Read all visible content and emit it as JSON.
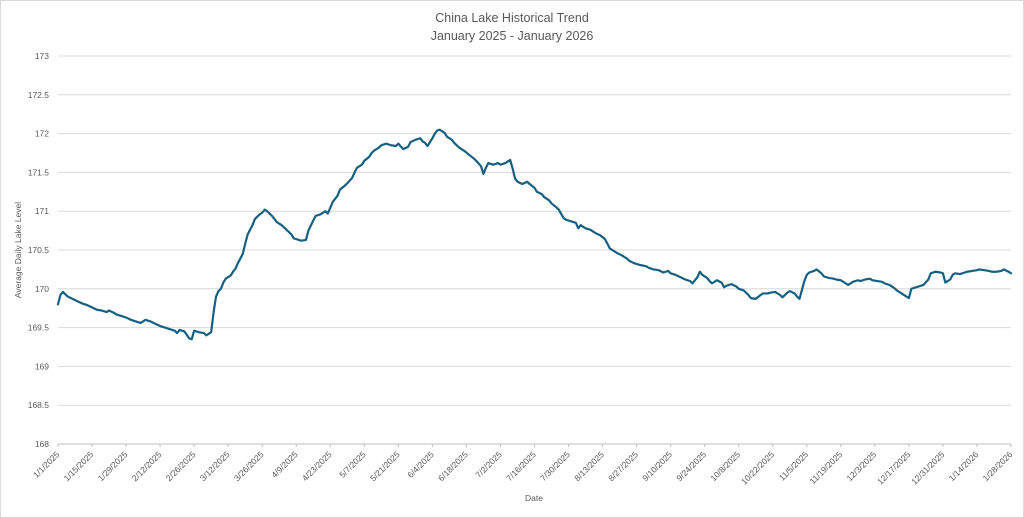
{
  "chart_data": {
    "type": "line",
    "title": "China Lake Historical Trend",
    "subtitle": "January 2025 - January 2026",
    "xlabel": "Date",
    "ylabel": "Average Daily Lake Level",
    "ylim": [
      168,
      173
    ],
    "y_ticks": [
      168,
      168.5,
      169,
      169.5,
      170,
      170.5,
      171,
      171.5,
      172,
      172.5,
      173
    ],
    "x_ticks": [
      "1/1/2025",
      "1/15/2025",
      "1/29/2025",
      "2/12/2025",
      "2/26/2025",
      "3/12/2025",
      "3/26/2025",
      "4/9/2025",
      "4/23/2025",
      "5/7/2025",
      "5/21/2025",
      "6/4/2025",
      "6/18/2025",
      "7/2/2025",
      "7/16/2025",
      "7/30/2025",
      "8/13/2025",
      "8/27/2025",
      "9/10/2025",
      "9/24/2025",
      "10/8/2025",
      "10/22/2025",
      "11/5/2025",
      "11/19/2025",
      "12/3/2025",
      "12/17/2025",
      "12/31/2025",
      "1/14/2026",
      "1/28/2026"
    ],
    "grid": true,
    "legend": false,
    "colors": {
      "line": "#156082",
      "gridline": "#d9d9d9",
      "axis_line": "#bfbfbf",
      "text": "#595959"
    },
    "series": [
      {
        "name": "Average Daily Lake Level",
        "points": [
          [
            "1/1/2025",
            169.8
          ],
          [
            "1/2/2025",
            169.92
          ],
          [
            "1/3/2025",
            169.96
          ],
          [
            "1/4/2025",
            169.93
          ],
          [
            "1/5/2025",
            169.9
          ],
          [
            "1/7/2025",
            169.87
          ],
          [
            "1/9/2025",
            169.84
          ],
          [
            "1/11/2025",
            169.81
          ],
          [
            "1/13/2025",
            169.79
          ],
          [
            "1/15/2025",
            169.76
          ],
          [
            "1/17/2025",
            169.73
          ],
          [
            "1/19/2025",
            169.72
          ],
          [
            "1/21/2025",
            169.7
          ],
          [
            "1/22/2025",
            169.72
          ],
          [
            "1/24/2025",
            169.69
          ],
          [
            "1/25/2025",
            169.67
          ],
          [
            "1/27/2025",
            169.65
          ],
          [
            "1/29/2025",
            169.63
          ],
          [
            "1/31/2025",
            169.6
          ],
          [
            "2/2/2025",
            169.58
          ],
          [
            "2/4/2025",
            169.56
          ],
          [
            "2/6/2025",
            169.6
          ],
          [
            "2/8/2025",
            169.58
          ],
          [
            "2/10/2025",
            169.55
          ],
          [
            "2/12/2025",
            169.52
          ],
          [
            "2/14/2025",
            169.5
          ],
          [
            "2/16/2025",
            169.48
          ],
          [
            "2/18/2025",
            169.46
          ],
          [
            "2/19/2025",
            169.43
          ],
          [
            "2/20/2025",
            169.47
          ],
          [
            "2/22/2025",
            169.45
          ],
          [
            "2/24/2025",
            169.36
          ],
          [
            "2/25/2025",
            169.35
          ],
          [
            "2/26/2025",
            169.46
          ],
          [
            "2/28/2025",
            169.44
          ],
          [
            "3/2/2025",
            169.43
          ],
          [
            "3/3/2025",
            169.4
          ],
          [
            "3/4/2025",
            169.42
          ],
          [
            "3/5/2025",
            169.44
          ],
          [
            "3/6/2025",
            169.7
          ],
          [
            "3/7/2025",
            169.9
          ],
          [
            "3/8/2025",
            169.97
          ],
          [
            "3/9/2025",
            170.0
          ],
          [
            "3/10/2025",
            170.08
          ],
          [
            "3/11/2025",
            170.13
          ],
          [
            "3/13/2025",
            170.17
          ],
          [
            "3/14/2025",
            170.22
          ],
          [
            "3/15/2025",
            170.26
          ],
          [
            "3/16/2025",
            170.33
          ],
          [
            "3/18/2025",
            170.45
          ],
          [
            "3/19/2025",
            170.58
          ],
          [
            "3/20/2025",
            170.7
          ],
          [
            "3/22/2025",
            170.82
          ],
          [
            "3/23/2025",
            170.9
          ],
          [
            "3/25/2025",
            170.96
          ],
          [
            "3/26/2025",
            170.98
          ],
          [
            "3/27/2025",
            171.02
          ],
          [
            "3/28/2025",
            171.0
          ],
          [
            "3/30/2025",
            170.94
          ],
          [
            "3/31/2025",
            170.9
          ],
          [
            "4/1/2025",
            170.86
          ],
          [
            "4/3/2025",
            170.82
          ],
          [
            "4/4/2025",
            170.79
          ],
          [
            "4/5/2025",
            170.76
          ],
          [
            "4/7/2025",
            170.7
          ],
          [
            "4/8/2025",
            170.65
          ],
          [
            "4/9/2025",
            170.64
          ],
          [
            "4/11/2025",
            170.62
          ],
          [
            "4/13/2025",
            170.63
          ],
          [
            "4/14/2025",
            170.75
          ],
          [
            "4/16/2025",
            170.88
          ],
          [
            "4/17/2025",
            170.94
          ],
          [
            "4/19/2025",
            170.96
          ],
          [
            "4/21/2025",
            171.0
          ],
          [
            "4/22/2025",
            170.97
          ],
          [
            "4/24/2025",
            171.12
          ],
          [
            "4/26/2025",
            171.2
          ],
          [
            "4/27/2025",
            171.28
          ],
          [
            "4/29/2025",
            171.33
          ],
          [
            "4/30/2025",
            171.36
          ],
          [
            "5/2/2025",
            171.43
          ],
          [
            "5/3/2025",
            171.5
          ],
          [
            "5/4/2025",
            171.56
          ],
          [
            "5/6/2025",
            171.6
          ],
          [
            "5/7/2025",
            171.65
          ],
          [
            "5/9/2025",
            171.7
          ],
          [
            "5/10/2025",
            171.75
          ],
          [
            "5/11/2025",
            171.78
          ],
          [
            "5/13/2025",
            171.82
          ],
          [
            "5/14/2025",
            171.85
          ],
          [
            "5/16/2025",
            171.87
          ],
          [
            "5/18/2025",
            171.85
          ],
          [
            "5/20/2025",
            171.84
          ],
          [
            "5/21/2025",
            171.87
          ],
          [
            "5/23/2025",
            171.8
          ],
          [
            "5/25/2025",
            171.83
          ],
          [
            "5/26/2025",
            171.89
          ],
          [
            "5/28/2025",
            171.92
          ],
          [
            "5/30/2025",
            171.94
          ],
          [
            "5/31/2025",
            171.9
          ],
          [
            "6/1/2025",
            171.88
          ],
          [
            "6/2/2025",
            171.84
          ],
          [
            "6/4/2025",
            171.94
          ],
          [
            "6/5/2025",
            172.0
          ],
          [
            "6/6/2025",
            172.04
          ],
          [
            "6/7/2025",
            172.05
          ],
          [
            "6/9/2025",
            172.01
          ],
          [
            "6/10/2025",
            171.96
          ],
          [
            "6/12/2025",
            171.92
          ],
          [
            "6/13/2025",
            171.88
          ],
          [
            "6/15/2025",
            171.82
          ],
          [
            "6/17/2025",
            171.78
          ],
          [
            "6/19/2025",
            171.73
          ],
          [
            "6/21/2025",
            171.68
          ],
          [
            "6/22/2025",
            171.65
          ],
          [
            "6/24/2025",
            171.58
          ],
          [
            "6/25/2025",
            171.48
          ],
          [
            "6/26/2025",
            171.56
          ],
          [
            "6/27/2025",
            171.62
          ],
          [
            "6/29/2025",
            171.6
          ],
          [
            "7/1/2025",
            171.62
          ],
          [
            "7/2/2025",
            171.6
          ],
          [
            "7/4/2025",
            171.62
          ],
          [
            "7/6/2025",
            171.66
          ],
          [
            "7/7/2025",
            171.55
          ],
          [
            "7/8/2025",
            171.42
          ],
          [
            "7/9/2025",
            171.38
          ],
          [
            "7/11/2025",
            171.35
          ],
          [
            "7/13/2025",
            171.38
          ],
          [
            "7/14/2025",
            171.35
          ],
          [
            "7/16/2025",
            171.3
          ],
          [
            "7/17/2025",
            171.25
          ],
          [
            "7/19/2025",
            171.22
          ],
          [
            "7/20/2025",
            171.18
          ],
          [
            "7/22/2025",
            171.14
          ],
          [
            "7/23/2025",
            171.1
          ],
          [
            "7/25/2025",
            171.05
          ],
          [
            "7/26/2025",
            171.02
          ],
          [
            "7/28/2025",
            170.91
          ],
          [
            "7/29/2025",
            170.89
          ],
          [
            "7/31/2025",
            170.87
          ],
          [
            "8/2/2025",
            170.85
          ],
          [
            "8/3/2025",
            170.78
          ],
          [
            "8/4/2025",
            170.82
          ],
          [
            "8/6/2025",
            170.78
          ],
          [
            "8/8/2025",
            170.76
          ],
          [
            "8/10/2025",
            170.72
          ],
          [
            "8/12/2025",
            170.69
          ],
          [
            "8/14/2025",
            170.64
          ],
          [
            "8/15/2025",
            170.58
          ],
          [
            "8/16/2025",
            170.52
          ],
          [
            "8/18/2025",
            170.48
          ],
          [
            "8/19/2025",
            170.46
          ],
          [
            "8/21/2025",
            170.43
          ],
          [
            "8/23/2025",
            170.39
          ],
          [
            "8/24/2025",
            170.36
          ],
          [
            "8/26/2025",
            170.33
          ],
          [
            "8/28/2025",
            170.31
          ],
          [
            "8/31/2025",
            170.29
          ],
          [
            "9/1/2025",
            170.27
          ],
          [
            "9/3/2025",
            170.25
          ],
          [
            "9/5/2025",
            170.24
          ],
          [
            "9/7/2025",
            170.21
          ],
          [
            "9/9/2025",
            170.23
          ],
          [
            "9/10/2025",
            170.2
          ],
          [
            "9/12/2025",
            170.18
          ],
          [
            "9/14/2025",
            170.15
          ],
          [
            "9/16/2025",
            170.12
          ],
          [
            "9/18/2025",
            170.1
          ],
          [
            "9/19/2025",
            170.07
          ],
          [
            "9/21/2025",
            170.15
          ],
          [
            "9/22/2025",
            170.22
          ],
          [
            "9/23/2025",
            170.18
          ],
          [
            "9/25/2025",
            170.14
          ],
          [
            "9/26/2025",
            170.1
          ],
          [
            "9/27/2025",
            170.07
          ],
          [
            "9/29/2025",
            170.11
          ],
          [
            "10/1/2025",
            170.08
          ],
          [
            "10/2/2025",
            170.02
          ],
          [
            "10/3/2025",
            170.04
          ],
          [
            "10/5/2025",
            170.06
          ],
          [
            "10/7/2025",
            170.03
          ],
          [
            "10/8/2025",
            170.0
          ],
          [
            "10/10/2025",
            169.98
          ],
          [
            "10/12/2025",
            169.92
          ],
          [
            "10/13/2025",
            169.88
          ],
          [
            "10/15/2025",
            169.87
          ],
          [
            "10/17/2025",
            169.92
          ],
          [
            "10/18/2025",
            169.94
          ],
          [
            "10/20/2025",
            169.94
          ],
          [
            "10/21/2025",
            169.95
          ],
          [
            "10/23/2025",
            169.96
          ],
          [
            "10/25/2025",
            169.92
          ],
          [
            "10/26/2025",
            169.89
          ],
          [
            "10/28/2025",
            169.95
          ],
          [
            "10/29/2025",
            169.97
          ],
          [
            "10/31/2025",
            169.94
          ],
          [
            "11/1/2025",
            169.9
          ],
          [
            "11/2/2025",
            169.87
          ],
          [
            "11/4/2025",
            170.1
          ],
          [
            "11/5/2025",
            170.18
          ],
          [
            "11/6/2025",
            170.21
          ],
          [
            "11/8/2025",
            170.23
          ],
          [
            "11/9/2025",
            170.25
          ],
          [
            "11/11/2025",
            170.2
          ],
          [
            "11/12/2025",
            170.16
          ],
          [
            "11/14/2025",
            170.14
          ],
          [
            "11/16/2025",
            170.13
          ],
          [
            "11/17/2025",
            170.12
          ],
          [
            "11/19/2025",
            170.11
          ],
          [
            "11/21/2025",
            170.07
          ],
          [
            "11/22/2025",
            170.05
          ],
          [
            "11/24/2025",
            170.09
          ],
          [
            "11/26/2025",
            170.11
          ],
          [
            "11/27/2025",
            170.1
          ],
          [
            "11/29/2025",
            170.12
          ],
          [
            "12/1/2025",
            170.13
          ],
          [
            "12/2/2025",
            170.11
          ],
          [
            "12/4/2025",
            170.1
          ],
          [
            "12/6/2025",
            170.09
          ],
          [
            "12/7/2025",
            170.07
          ],
          [
            "12/9/2025",
            170.05
          ],
          [
            "12/11/2025",
            170.01
          ],
          [
            "12/12/2025",
            169.98
          ],
          [
            "12/14/2025",
            169.94
          ],
          [
            "12/16/2025",
            169.9
          ],
          [
            "12/17/2025",
            169.88
          ],
          [
            "12/18/2025",
            170.0
          ],
          [
            "12/20/2025",
            170.02
          ],
          [
            "12/22/2025",
            170.04
          ],
          [
            "12/23/2025",
            170.05
          ],
          [
            "12/25/2025",
            170.12
          ],
          [
            "12/26/2025",
            170.2
          ],
          [
            "12/28/2025",
            170.22
          ],
          [
            "12/30/2025",
            170.21
          ],
          [
            "12/31/2025",
            170.2
          ],
          [
            "1/1/2026",
            170.08
          ],
          [
            "1/3/2026",
            170.12
          ],
          [
            "1/4/2026",
            170.18
          ],
          [
            "1/5/2026",
            170.2
          ],
          [
            "1/7/2026",
            170.19
          ],
          [
            "1/9/2026",
            170.21
          ],
          [
            "1/10/2026",
            170.22
          ],
          [
            "1/12/2026",
            170.23
          ],
          [
            "1/14/2026",
            170.24
          ],
          [
            "1/15/2026",
            170.25
          ],
          [
            "1/17/2026",
            170.24
          ],
          [
            "1/19/2026",
            170.23
          ],
          [
            "1/20/2026",
            170.22
          ],
          [
            "1/22/2026",
            170.22
          ],
          [
            "1/24/2026",
            170.23
          ],
          [
            "1/25/2026",
            170.25
          ],
          [
            "1/27/2026",
            170.22
          ],
          [
            "1/28/2026",
            170.2
          ]
        ]
      }
    ]
  }
}
